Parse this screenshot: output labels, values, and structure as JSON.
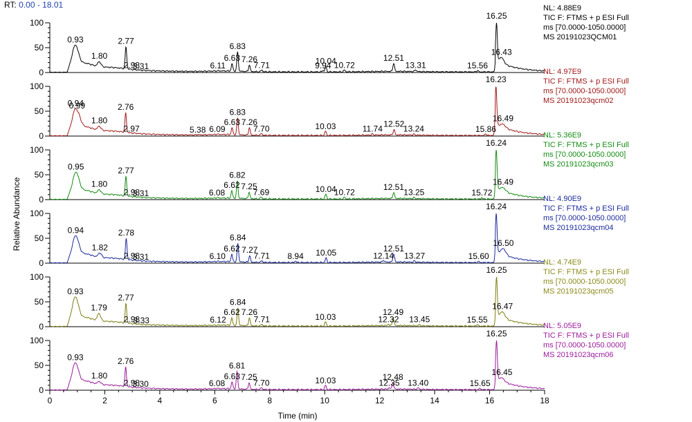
{
  "rt_label": "RT:",
  "rt_range": "0.00 - 18.01",
  "chart_data": {
    "type": "line",
    "xlabel": "Time (min)",
    "ylabel": "Relative Abundance",
    "xlim": [
      0,
      18
    ],
    "ylim": [
      0,
      100
    ],
    "x_ticks": [
      0,
      2,
      4,
      6,
      8,
      10,
      12,
      14,
      16,
      18
    ],
    "y_ticks": [
      0,
      50,
      100
    ],
    "series": [
      {
        "nl": "NL: 4.88E9",
        "info": [
          "TIC F: FTMS + p ESI Full",
          "ms [70.0000-1050.0000]",
          "MS 20191023QCM01"
        ],
        "color": "#000000",
        "info_color": "#000000",
        "peaks": [
          {
            "x": 0.93,
            "y": 55
          },
          {
            "x": 1.8,
            "y": 22
          },
          {
            "x": 2.77,
            "y": 52
          },
          {
            "x": 2.98,
            "y": 5
          },
          {
            "x": 3.31,
            "y": 3
          },
          {
            "x": 6.11,
            "y": 4
          },
          {
            "x": 6.63,
            "y": 18
          },
          {
            "x": 6.83,
            "y": 42
          },
          {
            "x": 7.26,
            "y": 15
          },
          {
            "x": 7.71,
            "y": 5
          },
          {
            "x": 9.94,
            "y": 4
          },
          {
            "x": 10.04,
            "y": 12
          },
          {
            "x": 10.72,
            "y": 5
          },
          {
            "x": 12.51,
            "y": 18
          },
          {
            "x": 13.31,
            "y": 5
          },
          {
            "x": 15.56,
            "y": 4
          },
          {
            "x": 16.25,
            "y": 100
          },
          {
            "x": 16.43,
            "y": 30
          }
        ]
      },
      {
        "nl": "NL: 4.97E9",
        "info": [
          "TIC F: FTMS + p ESI Full",
          "ms [70.0000-1050.0000]",
          "MS 20191023qcm02"
        ],
        "color": "#a01818",
        "info_color": "#a01818",
        "peaks": [
          {
            "x": 0.94,
            "y": 55
          },
          {
            "x": 0.99,
            "y": 50
          },
          {
            "x": 1.8,
            "y": 20
          },
          {
            "x": 2.76,
            "y": 47
          },
          {
            "x": 2.97,
            "y": 5
          },
          {
            "x": 5.38,
            "y": 3
          },
          {
            "x": 6.09,
            "y": 4
          },
          {
            "x": 6.63,
            "y": 17
          },
          {
            "x": 6.83,
            "y": 37
          },
          {
            "x": 7.26,
            "y": 17
          },
          {
            "x": 7.7,
            "y": 5
          },
          {
            "x": 10.03,
            "y": 10
          },
          {
            "x": 11.74,
            "y": 5
          },
          {
            "x": 12.52,
            "y": 13
          },
          {
            "x": 13.24,
            "y": 5
          },
          {
            "x": 15.86,
            "y": 4
          },
          {
            "x": 16.23,
            "y": 100
          },
          {
            "x": 16.49,
            "y": 24
          }
        ]
      },
      {
        "nl": "NL: 5.36E9",
        "info": [
          "TIC F: FTMS + p ESI Full",
          "ms [70.0000-1050.0000]",
          "MS 20191023qcm03"
        ],
        "color": "#128a12",
        "info_color": "#128a12",
        "peaks": [
          {
            "x": 0.95,
            "y": 55
          },
          {
            "x": 1.8,
            "y": 20
          },
          {
            "x": 2.77,
            "y": 47
          },
          {
            "x": 2.98,
            "y": 5
          },
          {
            "x": 3.31,
            "y": 3
          },
          {
            "x": 6.08,
            "y": 4
          },
          {
            "x": 6.62,
            "y": 18
          },
          {
            "x": 6.82,
            "y": 38
          },
          {
            "x": 7.25,
            "y": 15
          },
          {
            "x": 7.69,
            "y": 5
          },
          {
            "x": 10.04,
            "y": 11
          },
          {
            "x": 10.72,
            "y": 5
          },
          {
            "x": 12.51,
            "y": 14
          },
          {
            "x": 13.25,
            "y": 5
          },
          {
            "x": 15.72,
            "y": 4
          },
          {
            "x": 16.24,
            "y": 100
          },
          {
            "x": 16.49,
            "y": 24
          }
        ]
      },
      {
        "nl": "NL: 4.90E9",
        "info": [
          "TIC F: FTMS + p ESI Full",
          "ms [70.0000-1050.0000]",
          "MS 20191023qcm04"
        ],
        "color": "#1a2a9a",
        "info_color": "#1a2a9a",
        "peaks": [
          {
            "x": 0.94,
            "y": 55
          },
          {
            "x": 1.82,
            "y": 20
          },
          {
            "x": 2.78,
            "y": 50
          },
          {
            "x": 2.98,
            "y": 5
          },
          {
            "x": 3.31,
            "y": 3
          },
          {
            "x": 6.1,
            "y": 4
          },
          {
            "x": 6.62,
            "y": 18
          },
          {
            "x": 6.84,
            "y": 40
          },
          {
            "x": 7.27,
            "y": 15
          },
          {
            "x": 7.71,
            "y": 5
          },
          {
            "x": 8.94,
            "y": 4
          },
          {
            "x": 10.05,
            "y": 11
          },
          {
            "x": 12.14,
            "y": 5
          },
          {
            "x": 12.51,
            "y": 18
          },
          {
            "x": 13.27,
            "y": 5
          },
          {
            "x": 15.6,
            "y": 4
          },
          {
            "x": 16.24,
            "y": 100
          },
          {
            "x": 16.5,
            "y": 29
          }
        ]
      },
      {
        "nl": "NL: 4.74E9",
        "info": [
          "TIC F: FTMS + p ESI Full",
          "ms [70.0000-1050.0000]",
          "MS 20191023qcm05"
        ],
        "color": "#7d7d10",
        "info_color": "#8a8a1a",
        "peaks": [
          {
            "x": 0.93,
            "y": 60
          },
          {
            "x": 1.79,
            "y": 27
          },
          {
            "x": 2.77,
            "y": 47
          },
          {
            "x": 2.98,
            "y": 5
          },
          {
            "x": 3.33,
            "y": 3
          },
          {
            "x": 6.12,
            "y": 4
          },
          {
            "x": 6.62,
            "y": 18
          },
          {
            "x": 6.84,
            "y": 38
          },
          {
            "x": 7.26,
            "y": 18
          },
          {
            "x": 7.71,
            "y": 5
          },
          {
            "x": 10.03,
            "y": 10
          },
          {
            "x": 12.32,
            "y": 5
          },
          {
            "x": 12.49,
            "y": 18
          },
          {
            "x": 13.45,
            "y": 5
          },
          {
            "x": 15.55,
            "y": 4
          },
          {
            "x": 16.25,
            "y": 100
          },
          {
            "x": 16.47,
            "y": 30
          }
        ]
      },
      {
        "nl": "NL: 5.05E9",
        "info": [
          "TIC F: FTMS + p ESI Full",
          "ms [70.0000-1050.0000]",
          "MS 20191023qcm06"
        ],
        "color": "#9a1a9a",
        "info_color": "#9a1a9a",
        "peaks": [
          {
            "x": 0.93,
            "y": 55
          },
          {
            "x": 1.8,
            "y": 18
          },
          {
            "x": 2.76,
            "y": 47
          },
          {
            "x": 2.98,
            "y": 5
          },
          {
            "x": 3.3,
            "y": 3
          },
          {
            "x": 6.08,
            "y": 4
          },
          {
            "x": 6.63,
            "y": 17
          },
          {
            "x": 6.81,
            "y": 38
          },
          {
            "x": 7.25,
            "y": 15
          },
          {
            "x": 7.7,
            "y": 5
          },
          {
            "x": 10.03,
            "y": 10
          },
          {
            "x": 12.35,
            "y": 5
          },
          {
            "x": 12.48,
            "y": 15
          },
          {
            "x": 13.4,
            "y": 5
          },
          {
            "x": 15.65,
            "y": 4
          },
          {
            "x": 16.25,
            "y": 100
          },
          {
            "x": 16.45,
            "y": 25
          }
        ]
      }
    ]
  }
}
